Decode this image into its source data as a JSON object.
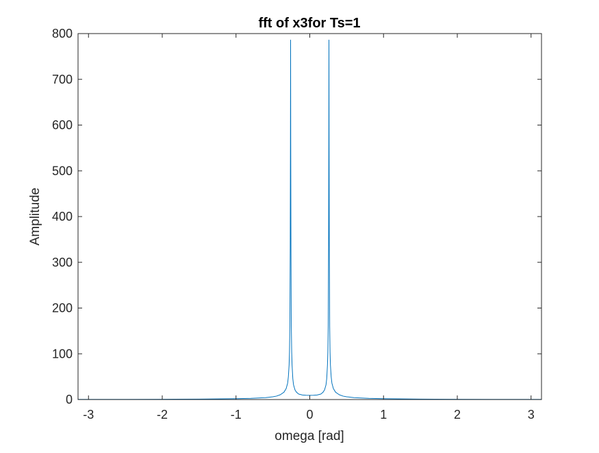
{
  "chart_data": {
    "type": "line",
    "title": "fft of x3for Ts=1",
    "xlabel": "omega [rad]",
    "ylabel": "Amplitude",
    "xlim": [
      -3.1416,
      3.1416
    ],
    "ylim": [
      0,
      800
    ],
    "xticks": [
      -3,
      -2,
      -1,
      0,
      1,
      2,
      3
    ],
    "xtick_labels": [
      "-3",
      "-2",
      "-1",
      "0",
      "1",
      "2",
      "3"
    ],
    "yticks": [
      0,
      100,
      200,
      300,
      400,
      500,
      600,
      700,
      800
    ],
    "ytick_labels": [
      "0",
      "100",
      "200",
      "300",
      "400",
      "500",
      "600",
      "700",
      "800"
    ],
    "grid": false,
    "box": true,
    "series": [
      {
        "color": "#0072BD",
        "x": [
          -3.1416,
          -2.5,
          -2.0,
          -1.5,
          -1.0,
          -0.8,
          -0.6,
          -0.5,
          -0.45,
          -0.4,
          -0.35,
          -0.32,
          -0.3,
          -0.29,
          -0.28,
          -0.275,
          -0.27,
          -0.265,
          -0.262,
          -0.26,
          -0.258,
          -0.255,
          -0.25,
          -0.245,
          -0.24,
          -0.23,
          -0.22,
          -0.2,
          -0.18,
          -0.15,
          -0.1,
          -0.05,
          0,
          0.05,
          0.1,
          0.15,
          0.18,
          0.2,
          0.22,
          0.23,
          0.24,
          0.245,
          0.25,
          0.255,
          0.258,
          0.26,
          0.262,
          0.265,
          0.27,
          0.275,
          0.28,
          0.29,
          0.3,
          0.32,
          0.35,
          0.4,
          0.45,
          0.5,
          0.6,
          0.8,
          1.0,
          1.5,
          2.0,
          2.5,
          3.1416
        ],
        "y": [
          0.3,
          0.4,
          0.6,
          0.9,
          1.8,
          2.6,
          4.2,
          6.0,
          7.6,
          10.5,
          16,
          24,
          36,
          50,
          76,
          104,
          160,
          330,
          560,
          786,
          560,
          330,
          160,
          104,
          76,
          46,
          32,
          21,
          16,
          12,
          10,
          9.3,
          9.2,
          9.3,
          10,
          12,
          16,
          21,
          32,
          46,
          76,
          104,
          160,
          330,
          560,
          786,
          560,
          330,
          160,
          104,
          76,
          50,
          36,
          24,
          16,
          10.5,
          7.6,
          6.0,
          4.2,
          2.6,
          1.8,
          0.9,
          0.6,
          0.4,
          0.3
        ]
      }
    ]
  }
}
